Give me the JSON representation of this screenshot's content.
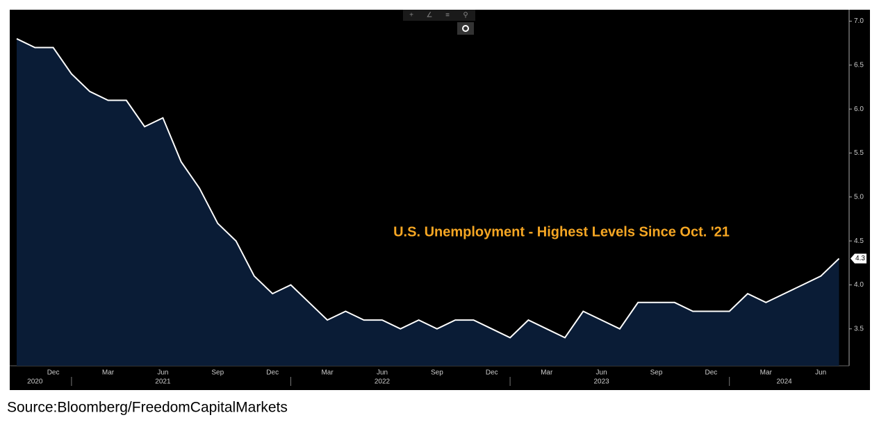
{
  "chart_data": {
    "type": "area",
    "annotation": "U.S. Unemployment - Highest Levels Since Oct. '21",
    "source": "Source:Bloomberg/FreedomCapitalMarkets",
    "categories": [
      null,
      null,
      "Dec",
      null,
      null,
      "Mar",
      null,
      null,
      "Jun",
      null,
      null,
      "Sep",
      null,
      null,
      "Dec",
      null,
      null,
      "Mar",
      null,
      null,
      "Jun",
      null,
      null,
      "Sep",
      null,
      null,
      "Dec",
      null,
      null,
      "Mar",
      null,
      null,
      "Jun",
      null,
      null,
      "Sep",
      null,
      null,
      "Dec",
      null,
      null,
      "Mar",
      null,
      null,
      "Jun",
      null
    ],
    "year_categories": [
      null,
      "2020",
      null,
      null,
      null,
      null,
      null,
      null,
      "2021",
      null,
      null,
      null,
      null,
      null,
      null,
      null,
      null,
      null,
      null,
      null,
      "2022",
      null,
      null,
      null,
      null,
      null,
      null,
      null,
      null,
      null,
      null,
      null,
      "2023",
      null,
      null,
      null,
      null,
      null,
      null,
      null,
      null,
      null,
      "2024",
      null,
      null,
      null
    ],
    "values": [
      6.8,
      6.7,
      6.7,
      6.4,
      6.2,
      6.1,
      6.1,
      5.8,
      5.9,
      5.4,
      5.1,
      4.7,
      4.5,
      4.1,
      3.9,
      4.0,
      3.8,
      3.6,
      3.7,
      3.6,
      3.6,
      3.5,
      3.6,
      3.5,
      3.6,
      3.6,
      3.5,
      3.4,
      3.6,
      3.5,
      3.4,
      3.7,
      3.6,
      3.5,
      3.8,
      3.8,
      3.8,
      3.7,
      3.7,
      3.7,
      3.9,
      3.8,
      3.9,
      4.0,
      4.1,
      4.3
    ],
    "last_label": "4.3",
    "color": "#ffffff",
    "fill_color": "#0a1c36",
    "ylim": [
      3.08,
      7.13
    ],
    "yticks": [
      3.5,
      {
        "value": 4,
        "label": "4.0"
      },
      4.5,
      {
        "value": 5,
        "label": "5.0"
      },
      5.5,
      {
        "value": 6,
        "label": "6.0"
      },
      6.5,
      {
        "value": 7,
        "label": "7.0"
      }
    ]
  }
}
